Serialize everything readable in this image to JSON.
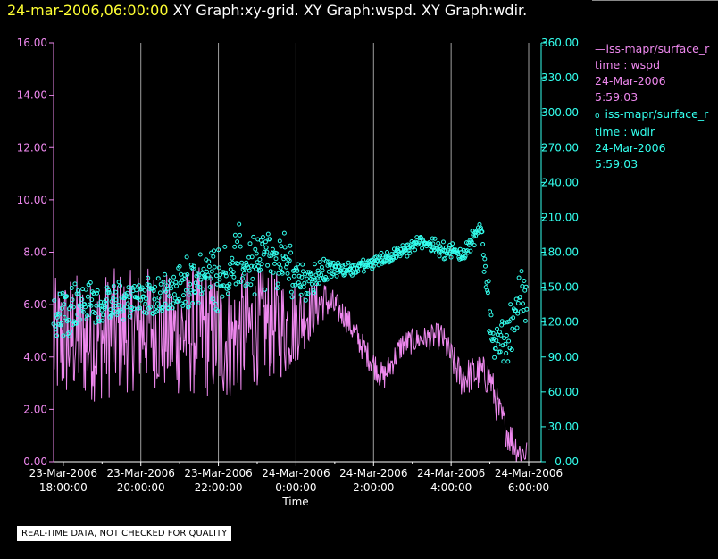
{
  "header": {
    "date_label": "24-mar-2006,06:00:00",
    "graph_titles": "XY Graph:xy-grid.  XY Graph:wspd.  XY Graph:wdir."
  },
  "colors": {
    "background": "#000000",
    "wspd": "#ee88ee",
    "wdir": "#33ffee",
    "grid": "#bbbbbb",
    "axis_text": "#ffffff",
    "title_date": "#ffff33"
  },
  "legend": {
    "wspd": {
      "marker": "—",
      "source": "iss-mapr/surface_r",
      "series": "time : wspd",
      "date": "24-Mar-2006",
      "time": "5:59:03"
    },
    "wdir": {
      "marker": "o",
      "source": "iss-mapr/surface_r",
      "series": "time : wdir",
      "date": "24-Mar-2006",
      "time": "5:59:03"
    }
  },
  "notice": "REAL-TIME DATA, NOT CHECKED FOR QUALITY",
  "chart_data": {
    "type": "line",
    "title": "XY Graph:wspd / XY Graph:wdir",
    "xlabel": "Time",
    "x_range_hours": [
      -6.25,
      6.0
    ],
    "x_ticks": [
      {
        "h": -6,
        "date": "23-Mar-2006",
        "time": "18:00:00"
      },
      {
        "h": -4,
        "date": "23-Mar-2006",
        "time": "20:00:00"
      },
      {
        "h": -2,
        "date": "23-Mar-2006",
        "time": "22:00:00"
      },
      {
        "h": 0,
        "date": "24-Mar-2006",
        "time": "0:00:00"
      },
      {
        "h": 2,
        "date": "24-Mar-2006",
        "time": "2:00:00"
      },
      {
        "h": 4,
        "date": "24-Mar-2006",
        "time": "4:00:00"
      },
      {
        "h": 6,
        "date": "24-Mar-2006",
        "time": "6:00:00"
      }
    ],
    "y_left": {
      "series": "wspd",
      "range": [
        0,
        16
      ],
      "ticks": [
        "0.00",
        "2.00",
        "4.00",
        "6.00",
        "8.00",
        "10.00",
        "12.00",
        "14.00",
        "16.00"
      ]
    },
    "y_right": {
      "series": "wdir",
      "range": [
        0,
        360
      ],
      "ticks": [
        "0.00",
        "30.00",
        "60.00",
        "90.00",
        "120.00",
        "150.00",
        "180.00",
        "210.00",
        "240.00",
        "270.00",
        "300.00",
        "330.00",
        "360.00"
      ]
    },
    "series": [
      {
        "name": "wspd",
        "style": "line",
        "x_hours": [
          -6.25,
          -5.75,
          -5.25,
          -4.75,
          -4.25,
          -3.75,
          -3.25,
          -2.75,
          -2.25,
          -1.75,
          -1.25,
          -0.75,
          -0.25,
          0.25,
          0.75,
          1.25,
          1.75,
          2.25,
          2.75,
          3.25,
          3.75,
          4.25,
          4.75,
          5.0,
          5.25,
          5.5,
          5.75,
          6.0
        ],
        "center": [
          4.5,
          4.8,
          4.6,
          4.9,
          5.0,
          5.2,
          4.8,
          5.0,
          4.9,
          4.6,
          5.0,
          5.3,
          5.1,
          5.6,
          6.2,
          5.6,
          4.3,
          3.2,
          4.5,
          4.7,
          4.8,
          3.2,
          3.4,
          3.2,
          1.8,
          1.0,
          0.4,
          0.3
        ],
        "amplitude": [
          1.4,
          1.4,
          1.3,
          1.4,
          1.3,
          1.3,
          1.3,
          1.4,
          1.4,
          1.3,
          1.3,
          1.2,
          1.1,
          0.7,
          0.4,
          0.3,
          0.3,
          0.3,
          0.3,
          0.25,
          0.3,
          0.4,
          0.4,
          0.4,
          0.4,
          0.4,
          0.3,
          0.3
        ]
      },
      {
        "name": "wdir",
        "style": "scatter",
        "x_hours": [
          -6.25,
          -5.75,
          -5.25,
          -4.75,
          -4.25,
          -3.75,
          -3.25,
          -2.75,
          -2.25,
          -1.75,
          -1.25,
          -0.75,
          -0.25,
          0.25,
          0.75,
          1.25,
          1.75,
          2.25,
          2.75,
          3.25,
          3.75,
          4.25,
          4.75,
          4.9,
          5.1,
          5.5,
          5.75,
          6.0
        ],
        "center": [
          125,
          135,
          137,
          133,
          140,
          142,
          142,
          155,
          160,
          165,
          170,
          175,
          168,
          155,
          165,
          165,
          168,
          175,
          180,
          190,
          182,
          178,
          200,
          165,
          95,
          110,
          140,
          135
        ],
        "spread": [
          20,
          18,
          15,
          15,
          14,
          16,
          16,
          18,
          22,
          28,
          26,
          22,
          22,
          16,
          8,
          5,
          5,
          5,
          5,
          5,
          6,
          8,
          6,
          20,
          15,
          18,
          22,
          18
        ]
      }
    ]
  }
}
